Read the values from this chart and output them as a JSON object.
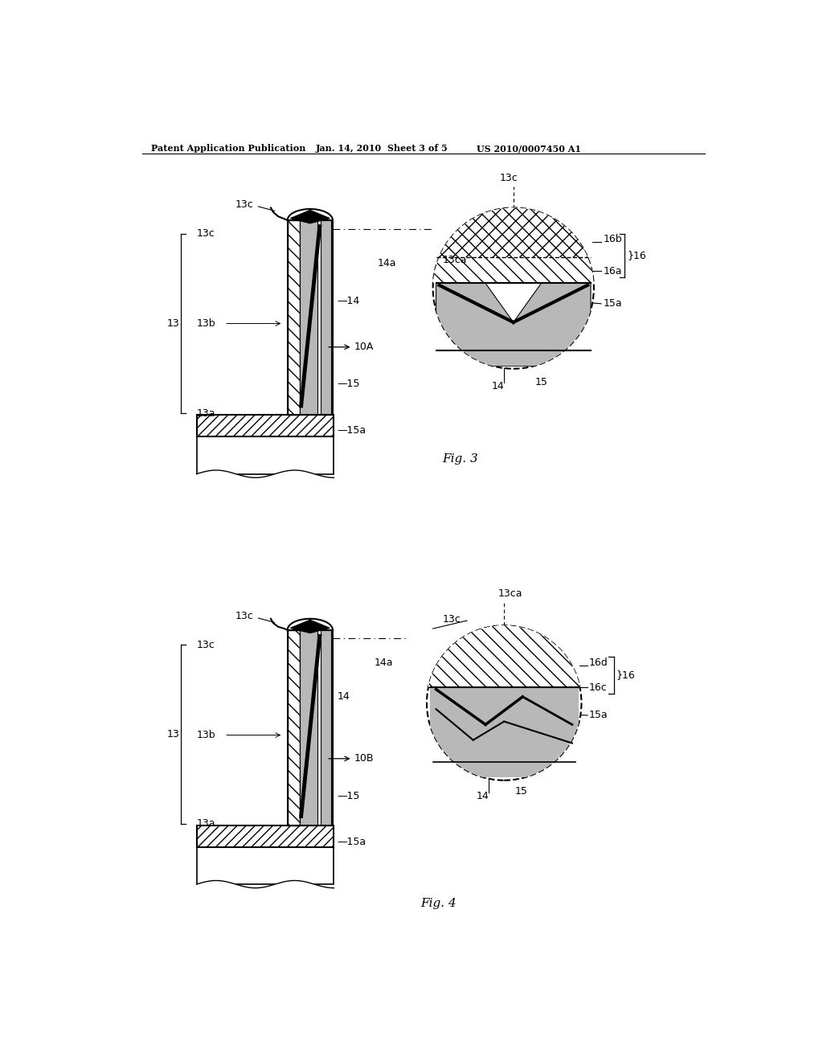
{
  "bg_color": "#ffffff",
  "header_text": "Patent Application Publication",
  "header_date": "Jan. 14, 2010  Sheet 3 of 5",
  "header_patent": "US 2010/0007450 A1",
  "fig3_label": "Fig. 3",
  "fig4_label": "Fig. 4",
  "line_color": "#000000",
  "font_size_label": 9,
  "font_size_header": 8
}
